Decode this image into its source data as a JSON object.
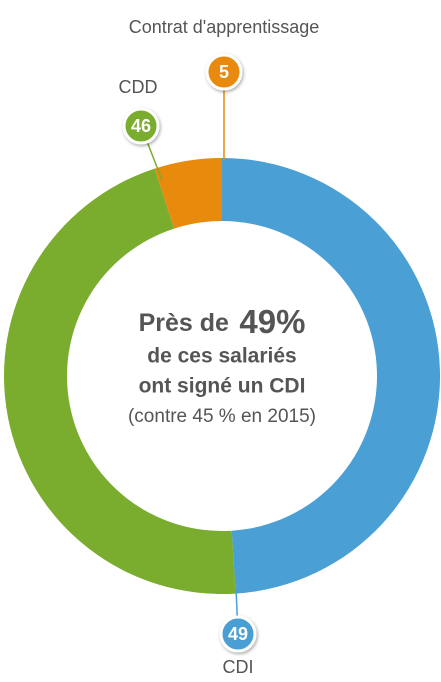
{
  "chart_data": {
    "type": "donut",
    "categories": [
      "CDI",
      "CDD",
      "Contrat d'apprentissage"
    ],
    "values": [
      49,
      46,
      5
    ],
    "colors": [
      "#4a9fd4",
      "#7aac2e",
      "#e88a0c"
    ],
    "center_text": [
      "Près de",
      "49%",
      "de ces salariés",
      "ont signé un CDI",
      "(contre 45 % en 2015)"
    ]
  }
}
